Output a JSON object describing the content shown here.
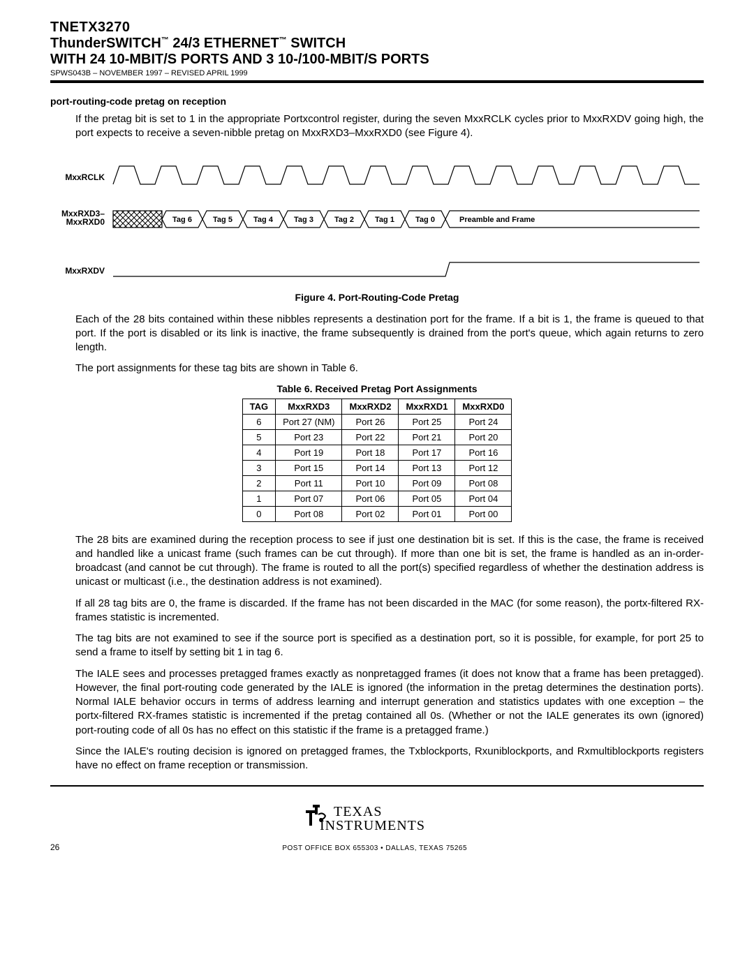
{
  "header": {
    "part": "TNETX3270",
    "title_pre": "ThunderSWITCH",
    "title_mid": " 24/3 ETHERNET",
    "title_post": " SWITCH",
    "subtitle": "WITH 24 10-MBIT/S PORTS AND 3 10-/100-MBIT/S PORTS",
    "docrev": "SPWS043B – NOVEMBER 1997 – REVISED APRIL 1999"
  },
  "section_title": "port-routing-code pretag on reception",
  "para1": "If the pretag bit is set to 1 in the appropriate Portxcontrol register, during the seven MxxRCLK cycles prior to MxxRXDV going high, the port expects to receive a seven-nibble pretag on MxxRXD3–MxxRXD0 (see Figure 4).",
  "timing": {
    "signals": {
      "clk": "MxxRCLK",
      "data_top": "MxxRXD3–",
      "data_bot": "MxxRXD0",
      "dv": "MxxRXDV"
    },
    "tags": [
      "Tag 6",
      "Tag 5",
      "Tag 4",
      "Tag 3",
      "Tag 2",
      "Tag 1",
      "Tag 0"
    ],
    "preamble": "Preamble and Frame",
    "clk_cycles": 14,
    "stroke_color": "#000000",
    "stroke_width": 1.2,
    "tag_font_size": 11
  },
  "fig_caption": "Figure 4. Port-Routing-Code Pretag",
  "para2": "Each of the 28 bits contained within these nibbles represents a destination port for the frame. If a bit is 1, the frame is queued to that port. If the port is disabled or its link is inactive, the frame subsequently is drained from the port's queue, which again returns to zero length.",
  "para3": "The port assignments for these tag bits are shown in Table 6.",
  "table_caption": "Table 6. Received Pretag Port Assignments",
  "table": {
    "columns": [
      "TAG",
      "MxxRXD3",
      "MxxRXD2",
      "MxxRXD1",
      "MxxRXD0"
    ],
    "rows": [
      [
        "6",
        "Port 27 (NM)",
        "Port 26",
        "Port 25",
        "Port 24"
      ],
      [
        "5",
        "Port 23",
        "Port 22",
        "Port 21",
        "Port 20"
      ],
      [
        "4",
        "Port 19",
        "Port 18",
        "Port 17",
        "Port 16"
      ],
      [
        "3",
        "Port 15",
        "Port 14",
        "Port 13",
        "Port 12"
      ],
      [
        "2",
        "Port 11",
        "Port 10",
        "Port 09",
        "Port 08"
      ],
      [
        "1",
        "Port 07",
        "Port 06",
        "Port 05",
        "Port 04"
      ],
      [
        "0",
        "Port 08",
        "Port 02",
        "Port 01",
        "Port 00"
      ]
    ]
  },
  "para4": "The 28 bits are examined during the reception process to see if just one destination bit is set. If this is the case, the frame is received and handled like a unicast frame (such frames can be cut through). If more than one bit is set, the frame is handled as an in-order-broadcast (and cannot be cut through). The frame is routed to all the port(s) specified regardless of whether the destination address is unicast or multicast (i.e., the destination address is not examined).",
  "para5": "If all 28 tag bits are 0, the frame is discarded. If the frame has not been discarded in the MAC (for some reason), the portx-filtered RX-frames statistic is incremented.",
  "para6": "The tag bits are not examined to see if the source port is specified as a destination port, so it is possible, for example, for port 25 to send a frame to itself by setting bit 1 in tag 6.",
  "para7": "The IALE sees and processes pretagged frames exactly as nonpretagged frames (it does not know that a frame has been pretagged). However, the final port-routing code generated by the IALE is ignored (the information in the pretag determines the destination ports). Normal IALE behavior occurs in terms of address learning and interrupt generation and statistics updates with one exception – the portx-filtered RX-frames statistic is incremented if the pretag contained all 0s. (Whether or not the IALE generates its own (ignored) port-routing code of all 0s has no effect on this statistic if the frame is a pretagged frame.)",
  "para8": "Since the IALE's routing decision is ignored on pretagged frames, the Txblockports, Rxuniblockports, and Rxmultiblockports registers have no effect on frame reception or transmission.",
  "footer": {
    "logo_top": "TEXAS",
    "logo_bot": "INSTRUMENTS",
    "address": "POST OFFICE BOX 655303 • DALLAS, TEXAS 75265",
    "page": "26"
  }
}
